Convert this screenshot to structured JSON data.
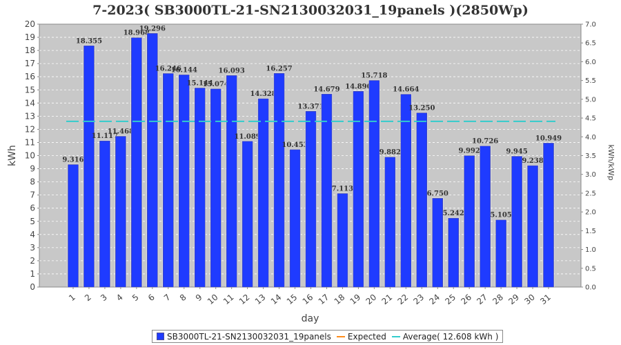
{
  "chart_data": {
    "type": "bar",
    "title": "7-2023( SB3000TL-21-SN2130032031_19panels )(2850Wp)",
    "xlabel": "day",
    "ylabel": "kWh",
    "y2label": "kWh/kWp",
    "categories": [
      "1",
      "2",
      "3",
      "4",
      "5",
      "6",
      "7",
      "8",
      "9",
      "10",
      "11",
      "12",
      "13",
      "14",
      "15",
      "16",
      "17",
      "18",
      "19",
      "20",
      "21",
      "22",
      "23",
      "24",
      "25",
      "26",
      "27",
      "28",
      "29",
      "30",
      "31"
    ],
    "series": [
      {
        "name": "SB3000TL-21-SN2130032031_19panels",
        "color": "#1f3bff",
        "values": [
          9.316,
          18.355,
          11.117,
          11.468,
          18.968,
          19.296,
          16.246,
          16.144,
          15.144,
          15.074,
          16.093,
          11.089,
          14.328,
          16.257,
          10.453,
          13.371,
          14.679,
          7.113,
          14.89,
          15.718,
          9.882,
          14.664,
          13.25,
          6.75,
          5.242,
          9.992,
          10.726,
          5.105,
          9.945,
          9.238,
          10.949
        ],
        "labels": [
          "9.316",
          "18.355",
          "11.117",
          "11.468",
          "18.968",
          "19.296",
          "16.246",
          "16.144",
          "15.144",
          "15.074",
          "16.093",
          "11.089",
          "14.328",
          "16.257",
          "10.453",
          "13.371",
          "14.679",
          "7.113",
          "14.890",
          "15.718",
          "9.882",
          "14.664",
          "13.250",
          "6.750",
          "5.242",
          "9.992",
          "10.726",
          "5.105",
          "9.945",
          "9.238",
          "10.949"
        ]
      }
    ],
    "average": 12.608,
    "ylim": [
      0,
      20
    ],
    "yticks": [
      "0",
      "1",
      "2",
      "3",
      "4",
      "5",
      "6",
      "7",
      "8",
      "9",
      "10",
      "11",
      "12",
      "13",
      "14",
      "15",
      "16",
      "17",
      "18",
      "19",
      "20"
    ],
    "y2lim": [
      0,
      7.0
    ],
    "y2ticks": [
      "0.0",
      "0.5",
      "1.0",
      "1.5",
      "2.0",
      "2.5",
      "3.0",
      "3.5",
      "4.0",
      "4.5",
      "5.0",
      "5.5",
      "6.0",
      "6.5",
      "7.0"
    ],
    "legend_position": "bottom",
    "legend": {
      "series_label": "SB3000TL-21-SN2130032031_19panels",
      "expected_label": "Expected",
      "average_label": "Average( 12.608 kWh )"
    },
    "colors": {
      "bar": "#1f3bff",
      "expected": "#ff8c1a",
      "average": "#33cccc",
      "plot_bg": "#c8c8c8"
    },
    "grid": true
  }
}
